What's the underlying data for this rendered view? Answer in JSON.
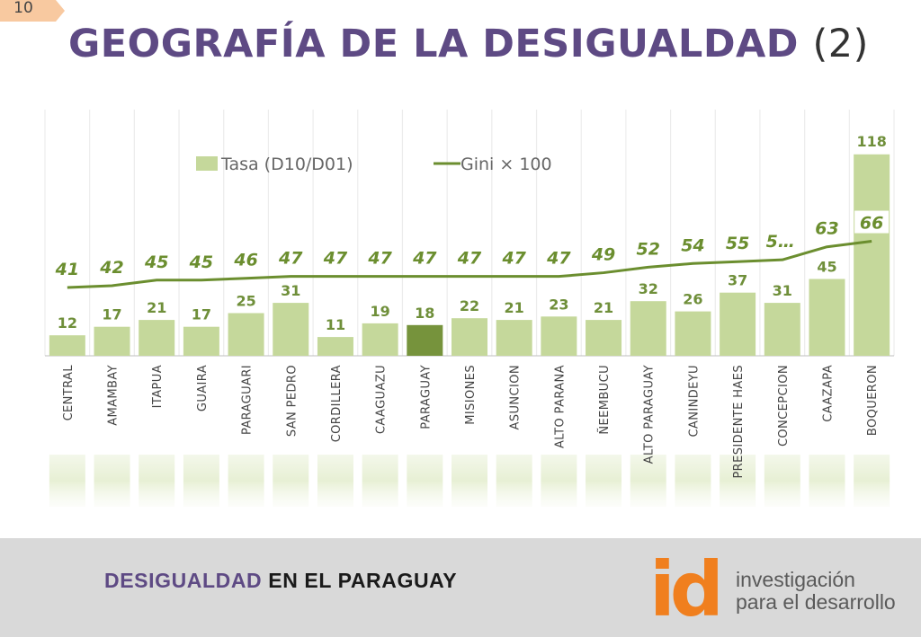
{
  "slide": {
    "number": "10"
  },
  "header": {
    "title_main": "GEOGRAFÍA DE LA DESIGUALDAD",
    "title_suffix": "(2)"
  },
  "colors": {
    "bar": "#c5d89b",
    "bar_highlight": "#76933c",
    "line": "#6b8e2f",
    "title": "#5e4a84"
  },
  "chart_data": {
    "type": "bar",
    "categories": [
      "CENTRAL",
      "AMAMBAY",
      "ITAPUA",
      "GUAIRA",
      "PARAGUARI",
      "SAN PEDRO",
      "CORDILLERA",
      "CAAGUAZU",
      "PARAGUAY",
      "MISIONES",
      "ASUNCION",
      "ALTO PARANA",
      "ÑEEMBUCU",
      "ALTO PARAGUAY",
      "CANINDEYU",
      "PRESIDENTE HAES",
      "CONCEPCION",
      "CAAZAPA",
      "BOQUERON"
    ],
    "series": [
      {
        "name": "Tasa (D10/D01)",
        "type": "bar",
        "values": [
          12,
          17,
          21,
          17,
          25,
          31,
          11,
          19,
          18,
          22,
          21,
          23,
          21,
          32,
          26,
          37,
          31,
          45,
          118
        ],
        "labels": [
          "12",
          "17",
          "21",
          "17",
          "25",
          "31",
          "11",
          "19",
          "18",
          "22",
          "21",
          "23",
          "21",
          "32",
          "26",
          "37",
          "31",
          "45",
          "118"
        ]
      },
      {
        "name": "Gini × 100",
        "type": "line",
        "values": [
          41,
          42,
          45,
          45,
          46,
          47,
          47,
          47,
          47,
          47,
          47,
          47,
          49,
          52,
          54,
          55,
          56,
          63,
          66
        ],
        "labels": [
          "41",
          "42",
          "45",
          "45",
          "46",
          "47",
          "47",
          "47",
          "47",
          "47",
          "47",
          "47",
          "49",
          "52",
          "54",
          "55",
          "5…",
          "63",
          "66"
        ]
      }
    ],
    "highlight_category": "PARAGUAY",
    "legend": "top-left",
    "grid": true
  },
  "footer": {
    "title_a": "DESIGUALDAD",
    "title_b": "EN EL PARAGUAY"
  },
  "logo": {
    "mark": "id",
    "line1": "investigación",
    "line2_a": "para el ",
    "line2_b": "desarrollo"
  }
}
